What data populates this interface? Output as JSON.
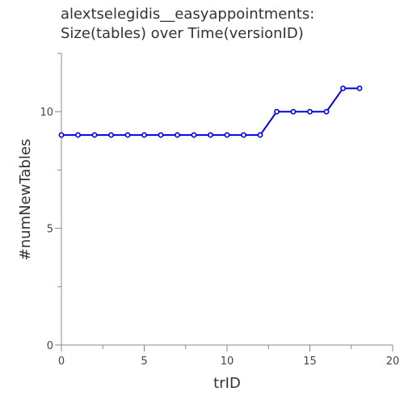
{
  "chart_data": {
    "type": "line",
    "title_lines": [
      "alextselegidis__easyappointments:",
      "Size(tables) over Time(versionID)"
    ],
    "xlabel": "trID",
    "ylabel": "#numNewTables",
    "xlim": [
      0,
      20
    ],
    "ylim": [
      0,
      12.5
    ],
    "x_ticks": [
      0,
      5,
      10,
      15,
      20
    ],
    "y_ticks": [
      0,
      5,
      10
    ],
    "grid": false,
    "series": [
      {
        "color": "#0000dd",
        "x": [
          0,
          1,
          2,
          3,
          4,
          5,
          6,
          7,
          8,
          9,
          10,
          11,
          12,
          13,
          14,
          15,
          16,
          17,
          18
        ],
        "y": [
          9,
          9,
          9,
          9,
          9,
          9,
          9,
          9,
          9,
          9,
          9,
          9,
          9,
          10,
          10,
          10,
          10,
          11,
          11
        ]
      }
    ]
  }
}
